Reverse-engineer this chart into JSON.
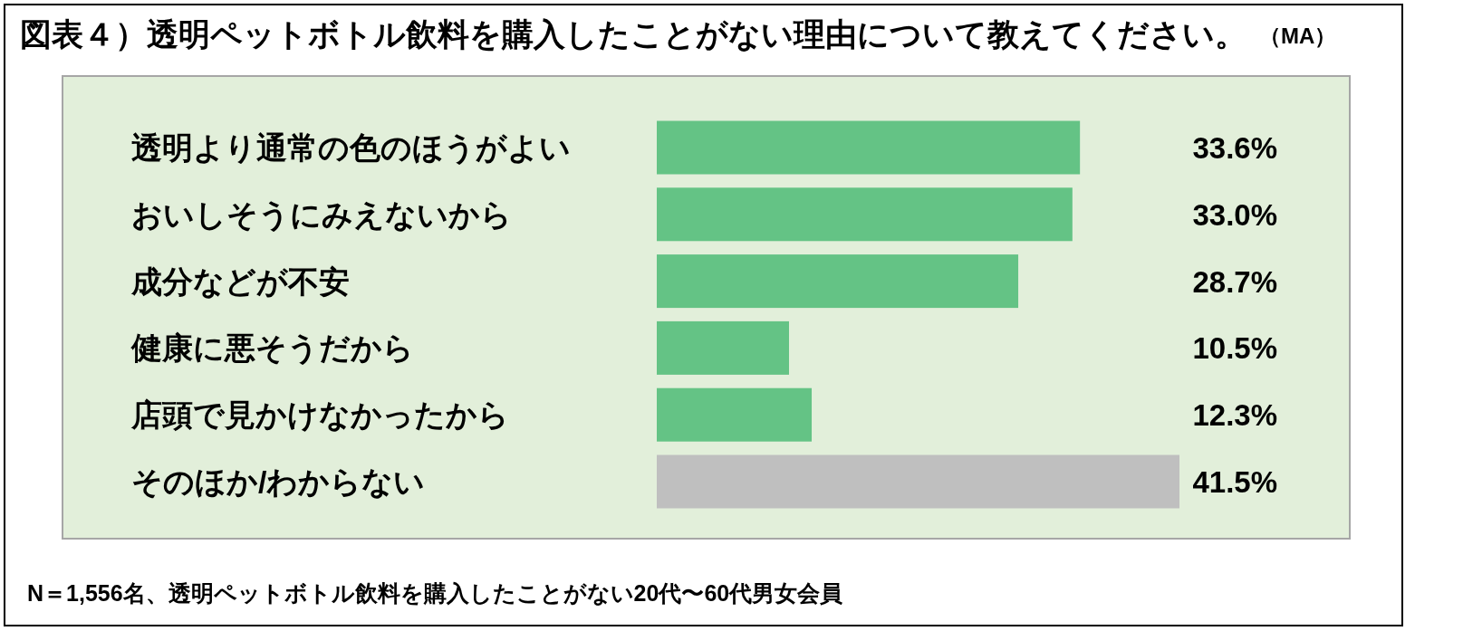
{
  "chart_data": {
    "type": "bar",
    "orientation": "horizontal",
    "title": "図表４）透明ペットボトル飲料を購入したことがない理由について教えてください。",
    "subtitle": "（MA）",
    "categories": [
      "透明より通常の色のほうがよい",
      "おいしそうにみえないから",
      "成分などが不安",
      "健康に悪そうだから",
      "店頭で見かけなかったから",
      "そのほか/わからない"
    ],
    "values": [
      33.6,
      33.0,
      28.7,
      10.5,
      12.3,
      41.5
    ],
    "colors": [
      "#64c385",
      "#64c385",
      "#64c385",
      "#64c385",
      "#64c385",
      "#bfbfbf"
    ],
    "value_labels": [
      "33.6%",
      "33.0%",
      "28.7%",
      "10.5%",
      "12.3%",
      "41.5%"
    ],
    "tick_labels": "y",
    "annotations": [
      "N＝1,556名、透明ペットボトル飲料を購入したことがない20代〜60代男女会員"
    ]
  }
}
